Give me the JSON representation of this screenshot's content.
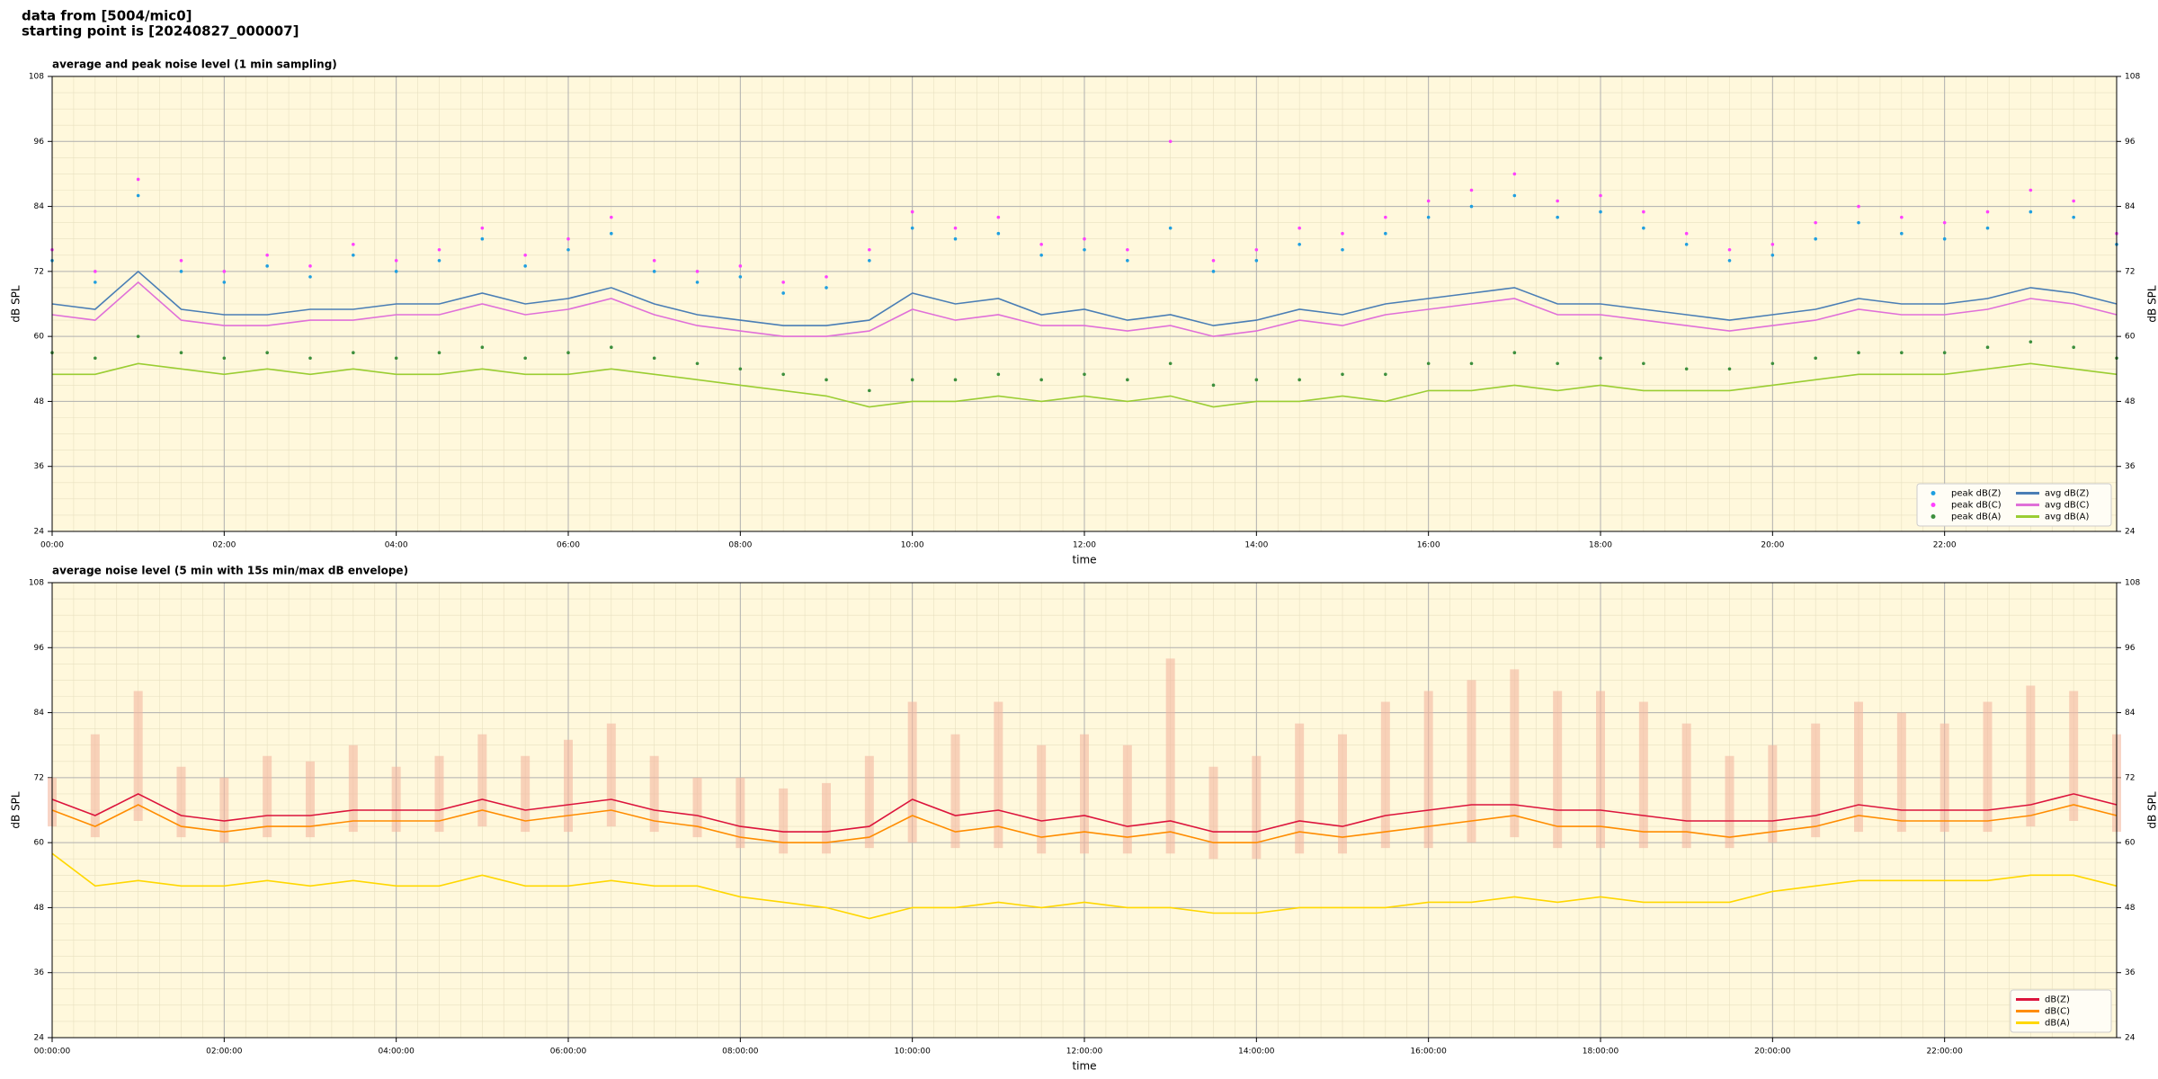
{
  "header": {
    "lines": [
      "data from [5004/mic0]",
      "starting point is [20240827_000007]"
    ]
  },
  "chart_data": [
    {
      "type": "line",
      "title": "average and peak noise level (1 min sampling)",
      "xlabel": "time",
      "ylabel": "dB SPL",
      "xlim": [
        0,
        24
      ],
      "ylim": [
        24,
        108
      ],
      "xticks": [
        {
          "value": 0,
          "label": "00:00"
        },
        {
          "value": 2,
          "label": "02:00"
        },
        {
          "value": 4,
          "label": "04:00"
        },
        {
          "value": 6,
          "label": "06:00"
        },
        {
          "value": 8,
          "label": "08:00"
        },
        {
          "value": 10,
          "label": "10:00"
        },
        {
          "value": 12,
          "label": "12:00"
        },
        {
          "value": 14,
          "label": "14:00"
        },
        {
          "value": 16,
          "label": "16:00"
        },
        {
          "value": 18,
          "label": "18:00"
        },
        {
          "value": 20,
          "label": "20:00"
        },
        {
          "value": 22,
          "label": "22:00"
        }
      ],
      "yticks": [
        24,
        36,
        48,
        60,
        72,
        84,
        96,
        108
      ],
      "grid": true,
      "legend": "lower right",
      "legend_columns": 2,
      "x": [
        0,
        0.5,
        1,
        1.5,
        2,
        2.5,
        3,
        3.5,
        4,
        4.5,
        5,
        5.5,
        6,
        6.5,
        7,
        7.5,
        8,
        8.5,
        9,
        9.5,
        10,
        10.5,
        11,
        11.5,
        12,
        12.5,
        13,
        13.5,
        14,
        14.5,
        15,
        15.5,
        16,
        16.5,
        17,
        17.5,
        18,
        18.5,
        19,
        19.5,
        20,
        20.5,
        21,
        21.5,
        22,
        22.5,
        23,
        23.5,
        24
      ],
      "series": [
        {
          "name": "peak dB(Z)",
          "mode": "markers",
          "color": "#1f9fe0",
          "values": [
            74,
            70,
            86,
            72,
            70,
            73,
            71,
            75,
            72,
            74,
            78,
            73,
            76,
            79,
            72,
            70,
            71,
            68,
            69,
            74,
            80,
            78,
            79,
            75,
            76,
            74,
            80,
            72,
            74,
            77,
            76,
            79,
            82,
            84,
            86,
            82,
            83,
            80,
            77,
            74,
            75,
            78,
            81,
            79,
            78,
            80,
            83,
            82,
            77
          ]
        },
        {
          "name": "peak dB(C)",
          "mode": "markers",
          "color": "#ff40ff",
          "values": [
            76,
            72,
            89,
            74,
            72,
            75,
            73,
            77,
            74,
            76,
            80,
            75,
            78,
            82,
            74,
            72,
            73,
            70,
            71,
            76,
            83,
            80,
            82,
            77,
            78,
            76,
            96,
            74,
            76,
            80,
            79,
            82,
            85,
            87,
            90,
            85,
            86,
            83,
            79,
            76,
            77,
            81,
            84,
            82,
            81,
            83,
            87,
            85,
            79
          ]
        },
        {
          "name": "peak dB(A)",
          "mode": "markers",
          "color": "#3d8f3d",
          "values": [
            57,
            56,
            60,
            57,
            56,
            57,
            56,
            57,
            56,
            57,
            58,
            56,
            57,
            58,
            56,
            55,
            54,
            53,
            52,
            50,
            52,
            52,
            53,
            52,
            53,
            52,
            55,
            51,
            52,
            52,
            53,
            53,
            55,
            55,
            57,
            55,
            56,
            55,
            54,
            54,
            55,
            56,
            57,
            57,
            57,
            58,
            59,
            58,
            56
          ]
        },
        {
          "name": "avg dB(Z)",
          "mode": "lines",
          "color": "#4a7eb5",
          "values": [
            66,
            65,
            72,
            65,
            64,
            64,
            65,
            65,
            66,
            66,
            68,
            66,
            67,
            69,
            66,
            64,
            63,
            62,
            62,
            63,
            68,
            66,
            67,
            64,
            65,
            63,
            64,
            62,
            63,
            65,
            64,
            66,
            67,
            68,
            69,
            66,
            66,
            65,
            64,
            63,
            64,
            65,
            67,
            66,
            66,
            67,
            69,
            68,
            66
          ]
        },
        {
          "name": "avg dB(C)",
          "mode": "lines",
          "color": "#e070d8",
          "values": [
            64,
            63,
            70,
            63,
            62,
            62,
            63,
            63,
            64,
            64,
            66,
            64,
            65,
            67,
            64,
            62,
            61,
            60,
            60,
            61,
            65,
            63,
            64,
            62,
            62,
            61,
            62,
            60,
            61,
            63,
            62,
            64,
            65,
            66,
            67,
            64,
            64,
            63,
            62,
            61,
            62,
            63,
            65,
            64,
            64,
            65,
            67,
            66,
            64
          ]
        },
        {
          "name": "avg dB(A)",
          "mode": "lines",
          "color": "#9acd32",
          "values": [
            53,
            53,
            55,
            54,
            53,
            54,
            53,
            54,
            53,
            53,
            54,
            53,
            53,
            54,
            53,
            52,
            51,
            50,
            49,
            47,
            48,
            48,
            49,
            48,
            49,
            48,
            49,
            47,
            48,
            48,
            49,
            48,
            50,
            50,
            51,
            50,
            51,
            50,
            50,
            50,
            51,
            52,
            53,
            53,
            53,
            54,
            55,
            54,
            53
          ]
        }
      ]
    },
    {
      "type": "line",
      "title": "average noise level (5 min with 15s min/max dB envelope)",
      "xlabel": "time",
      "ylabel": "dB SPL",
      "xlim": [
        0,
        24
      ],
      "ylim": [
        24,
        108
      ],
      "xticks": [
        {
          "value": 0,
          "label": "00:00:00"
        },
        {
          "value": 2,
          "label": "02:00:00"
        },
        {
          "value": 4,
          "label": "04:00:00"
        },
        {
          "value": 6,
          "label": "06:00:00"
        },
        {
          "value": 8,
          "label": "08:00:00"
        },
        {
          "value": 10,
          "label": "10:00:00"
        },
        {
          "value": 12,
          "label": "12:00:00"
        },
        {
          "value": 14,
          "label": "14:00:00"
        },
        {
          "value": 16,
          "label": "16:00:00"
        },
        {
          "value": 18,
          "label": "18:00:00"
        },
        {
          "value": 20,
          "label": "20:00:00"
        },
        {
          "value": 22,
          "label": "22:00:00"
        }
      ],
      "yticks": [
        24,
        36,
        48,
        60,
        72,
        84,
        96,
        108
      ],
      "grid": true,
      "legend": "lower right",
      "legend_columns": 1,
      "x": [
        0,
        0.5,
        1,
        1.5,
        2,
        2.5,
        3,
        3.5,
        4,
        4.5,
        5,
        5.5,
        6,
        6.5,
        7,
        7.5,
        8,
        8.5,
        9,
        9.5,
        10,
        10.5,
        11,
        11.5,
        12,
        12.5,
        13,
        13.5,
        14,
        14.5,
        15,
        15.5,
        16,
        16.5,
        17,
        17.5,
        18,
        18.5,
        19,
        19.5,
        20,
        20.5,
        21,
        21.5,
        22,
        22.5,
        23,
        23.5,
        24
      ],
      "envelope": {
        "color": "#f4b8a0",
        "upper": [
          72,
          80,
          88,
          74,
          72,
          76,
          75,
          78,
          74,
          76,
          80,
          76,
          79,
          82,
          76,
          72,
          72,
          70,
          71,
          76,
          86,
          80,
          86,
          78,
          80,
          78,
          94,
          74,
          76,
          82,
          80,
          86,
          88,
          90,
          92,
          88,
          88,
          86,
          82,
          76,
          78,
          82,
          86,
          84,
          82,
          86,
          89,
          88,
          80
        ],
        "lower": [
          63,
          61,
          64,
          61,
          60,
          61,
          61,
          62,
          62,
          62,
          63,
          62,
          62,
          63,
          62,
          61,
          59,
          58,
          58,
          59,
          60,
          59,
          59,
          58,
          58,
          58,
          58,
          57,
          57,
          58,
          58,
          59,
          59,
          60,
          61,
          59,
          59,
          59,
          59,
          59,
          60,
          61,
          62,
          62,
          62,
          62,
          63,
          64,
          62
        ]
      },
      "series": [
        {
          "name": "dB(Z)",
          "mode": "lines",
          "color": "#dc143c",
          "values": [
            68,
            65,
            69,
            65,
            64,
            65,
            65,
            66,
            66,
            66,
            68,
            66,
            67,
            68,
            66,
            65,
            63,
            62,
            62,
            63,
            68,
            65,
            66,
            64,
            65,
            63,
            64,
            62,
            62,
            64,
            63,
            65,
            66,
            67,
            67,
            66,
            66,
            65,
            64,
            64,
            64,
            65,
            67,
            66,
            66,
            66,
            67,
            69,
            67
          ]
        },
        {
          "name": "dB(C)",
          "mode": "lines",
          "color": "#ff8c00",
          "values": [
            66,
            63,
            67,
            63,
            62,
            63,
            63,
            64,
            64,
            64,
            66,
            64,
            65,
            66,
            64,
            63,
            61,
            60,
            60,
            61,
            65,
            62,
            63,
            61,
            62,
            61,
            62,
            60,
            60,
            62,
            61,
            62,
            63,
            64,
            65,
            63,
            63,
            62,
            62,
            61,
            62,
            63,
            65,
            64,
            64,
            64,
            65,
            67,
            65
          ]
        },
        {
          "name": "dB(A)",
          "mode": "lines",
          "color": "#ffd700",
          "values": [
            58,
            52,
            53,
            52,
            52,
            53,
            52,
            53,
            52,
            52,
            54,
            52,
            52,
            53,
            52,
            52,
            50,
            49,
            48,
            46,
            48,
            48,
            49,
            48,
            49,
            48,
            48,
            47,
            47,
            48,
            48,
            48,
            49,
            49,
            50,
            49,
            50,
            49,
            49,
            49,
            51,
            52,
            53,
            53,
            53,
            53,
            54,
            54,
            52
          ]
        }
      ]
    }
  ]
}
